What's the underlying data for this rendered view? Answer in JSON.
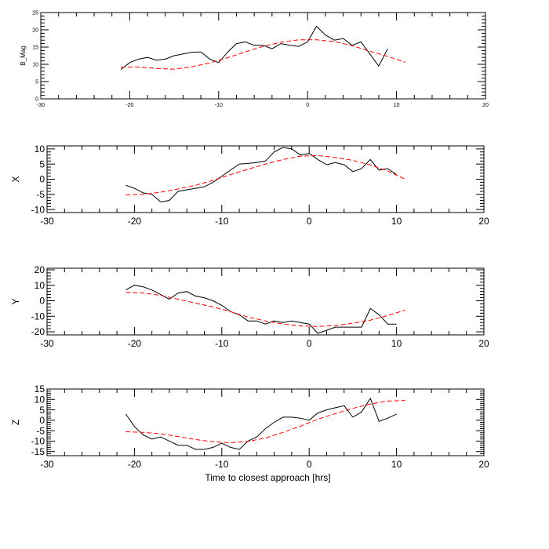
{
  "colors": {
    "axes": "#000000",
    "observed": "#000000",
    "fit": "#ff0000",
    "background": "#ffffff"
  },
  "chart_data": [
    {
      "type": "line",
      "ylabel": "B_Mag",
      "xlabel": "",
      "xlim": [
        -30,
        20
      ],
      "ylim": [
        0,
        25
      ],
      "xticks": [
        -30,
        -20,
        -10,
        0,
        10,
        20
      ],
      "yticks": [
        0,
        5,
        10,
        15,
        20,
        25
      ],
      "series": [
        {
          "style": "solid",
          "x": [
            -21,
            -20,
            -19,
            -18,
            -17,
            -16,
            -15,
            -14,
            -13,
            -12,
            -11,
            -10,
            -9,
            -8,
            -7,
            -6,
            -5,
            -4,
            -3,
            -2,
            -1,
            0,
            1,
            2,
            3,
            4,
            5,
            6,
            7,
            8,
            9
          ],
          "y": [
            8.5,
            10.5,
            11.5,
            12.0,
            11.2,
            11.5,
            12.5,
            13.0,
            13.5,
            13.6,
            11.5,
            10.5,
            13.5,
            16.0,
            16.5,
            15.5,
            15.5,
            14.5,
            16.0,
            15.5,
            15.2,
            16.5,
            21.0,
            18.5,
            17.0,
            17.5,
            15.5,
            16.5,
            13.0,
            9.5,
            14.5
          ]
        },
        {
          "style": "dashed",
          "x": [
            -21,
            -19,
            -17,
            -15,
            -13,
            -11,
            -9,
            -7,
            -5,
            -3,
            -1,
            1,
            3,
            5,
            7,
            9,
            11
          ],
          "y": [
            9.2,
            9.2,
            8.8,
            8.6,
            9.3,
            10.4,
            11.9,
            13.6,
            15.2,
            16.4,
            17.1,
            17.1,
            16.6,
            15.4,
            13.8,
            12.3,
            10.6
          ]
        }
      ]
    },
    {
      "type": "line",
      "ylabel": "X",
      "xlabel": "",
      "xlim": [
        -30,
        20
      ],
      "ylim": [
        -11,
        11
      ],
      "xticks": [
        -30,
        -20,
        -10,
        0,
        10,
        20
      ],
      "yticks": [
        -10,
        -5,
        0,
        5,
        10
      ],
      "series": [
        {
          "style": "solid",
          "x": [
            -21,
            -20,
            -19,
            -18,
            -17,
            -16,
            -15,
            -14,
            -13,
            -12,
            -11,
            -10,
            -9,
            -8,
            -7,
            -6,
            -5,
            -4,
            -3,
            -2,
            -1,
            0,
            1,
            2,
            3,
            4,
            5,
            6,
            7,
            8,
            9,
            10
          ],
          "y": [
            -2.0,
            -3.0,
            -4.5,
            -5.0,
            -7.5,
            -7.0,
            -4.0,
            -3.5,
            -3.0,
            -2.5,
            -1.0,
            1.0,
            3.0,
            5.0,
            5.2,
            5.5,
            6.0,
            9.0,
            10.5,
            10.0,
            8.0,
            8.5,
            6.5,
            4.8,
            5.5,
            4.8,
            2.5,
            3.5,
            6.5,
            3.0,
            3.5,
            1.5
          ]
        },
        {
          "style": "dashed",
          "x": [
            -21,
            -19,
            -17,
            -15,
            -13,
            -11,
            -9,
            -7,
            -5,
            -3,
            -1,
            1,
            3,
            5,
            7,
            9,
            11
          ],
          "y": [
            -5.2,
            -5.0,
            -4.3,
            -3.2,
            -2.0,
            -0.4,
            1.5,
            3.3,
            5.0,
            6.5,
            7.6,
            7.8,
            7.2,
            6.2,
            4.7,
            2.7,
            0.0
          ]
        }
      ]
    },
    {
      "type": "line",
      "ylabel": "Y",
      "xlabel": "",
      "xlim": [
        -30,
        20
      ],
      "ylim": [
        -22,
        21
      ],
      "xticks": [
        -30,
        -20,
        -10,
        0,
        10,
        20
      ],
      "yticks": [
        -20,
        -10,
        0,
        10,
        20
      ],
      "series": [
        {
          "style": "solid",
          "x": [
            -21,
            -20,
            -19,
            -18,
            -17,
            -16,
            -15,
            -14,
            -13,
            -12,
            -11,
            -10,
            -9,
            -8,
            -7,
            -6,
            -5,
            -4,
            -3,
            -2,
            -1,
            0,
            1,
            2,
            3,
            4,
            5,
            6,
            7,
            8,
            9,
            10
          ],
          "y": [
            7,
            10,
            9,
            7,
            4,
            1,
            5,
            6,
            3,
            2,
            0,
            -3,
            -7,
            -9,
            -13,
            -13,
            -15,
            -13,
            -14,
            -13,
            -14,
            -15,
            -21,
            -19,
            -17,
            -17,
            -17,
            -17,
            -5,
            -9,
            -15,
            -15
          ]
        },
        {
          "style": "dashed",
          "x": [
            -21,
            -19,
            -17,
            -15,
            -13,
            -11,
            -9,
            -7,
            -5,
            -3,
            -1,
            1,
            3,
            5,
            7,
            9,
            11
          ],
          "y": [
            5.5,
            5.0,
            3.5,
            1.0,
            -1.5,
            -4.0,
            -7.0,
            -10.5,
            -13.0,
            -15.0,
            -16.3,
            -16.6,
            -16.0,
            -14.5,
            -12.5,
            -9.5,
            -6.0
          ]
        }
      ]
    },
    {
      "type": "line",
      "ylabel": "Z",
      "xlabel": "Time to closest approach [hrs]",
      "xlim": [
        -30,
        20
      ],
      "ylim": [
        -17,
        15
      ],
      "xticks": [
        -30,
        -20,
        -10,
        0,
        10,
        20
      ],
      "yticks": [
        -15,
        -10,
        -5,
        0,
        5,
        10,
        15
      ],
      "series": [
        {
          "style": "solid",
          "x": [
            -21,
            -20,
            -19,
            -18,
            -17,
            -16,
            -15,
            -14,
            -13,
            -12,
            -11,
            -10,
            -9,
            -8,
            -7,
            -6,
            -5,
            -4,
            -3,
            -2,
            -1,
            0,
            1,
            2,
            3,
            4,
            5,
            6,
            7,
            8,
            9,
            10
          ],
          "y": [
            3,
            -3,
            -7,
            -9,
            -8,
            -10,
            -12,
            -12,
            -14,
            -14,
            -13,
            -11,
            -13,
            -14,
            -10,
            -8,
            -4,
            -1,
            1.5,
            1.5,
            1,
            0,
            3.5,
            5,
            6,
            7,
            1.5,
            4,
            10.5,
            -0.5,
            1,
            3
          ]
        },
        {
          "style": "dashed",
          "x": [
            -21,
            -19,
            -17,
            -15,
            -13,
            -11,
            -9,
            -7,
            -5,
            -3,
            -1,
            1,
            3,
            5,
            7,
            9,
            11
          ],
          "y": [
            -5.5,
            -5.8,
            -6.5,
            -7.8,
            -9.3,
            -10.3,
            -10.8,
            -10.2,
            -8.5,
            -5.8,
            -2.8,
            0.5,
            3.2,
            5.7,
            7.8,
            9.2,
            9.5
          ]
        }
      ]
    }
  ]
}
